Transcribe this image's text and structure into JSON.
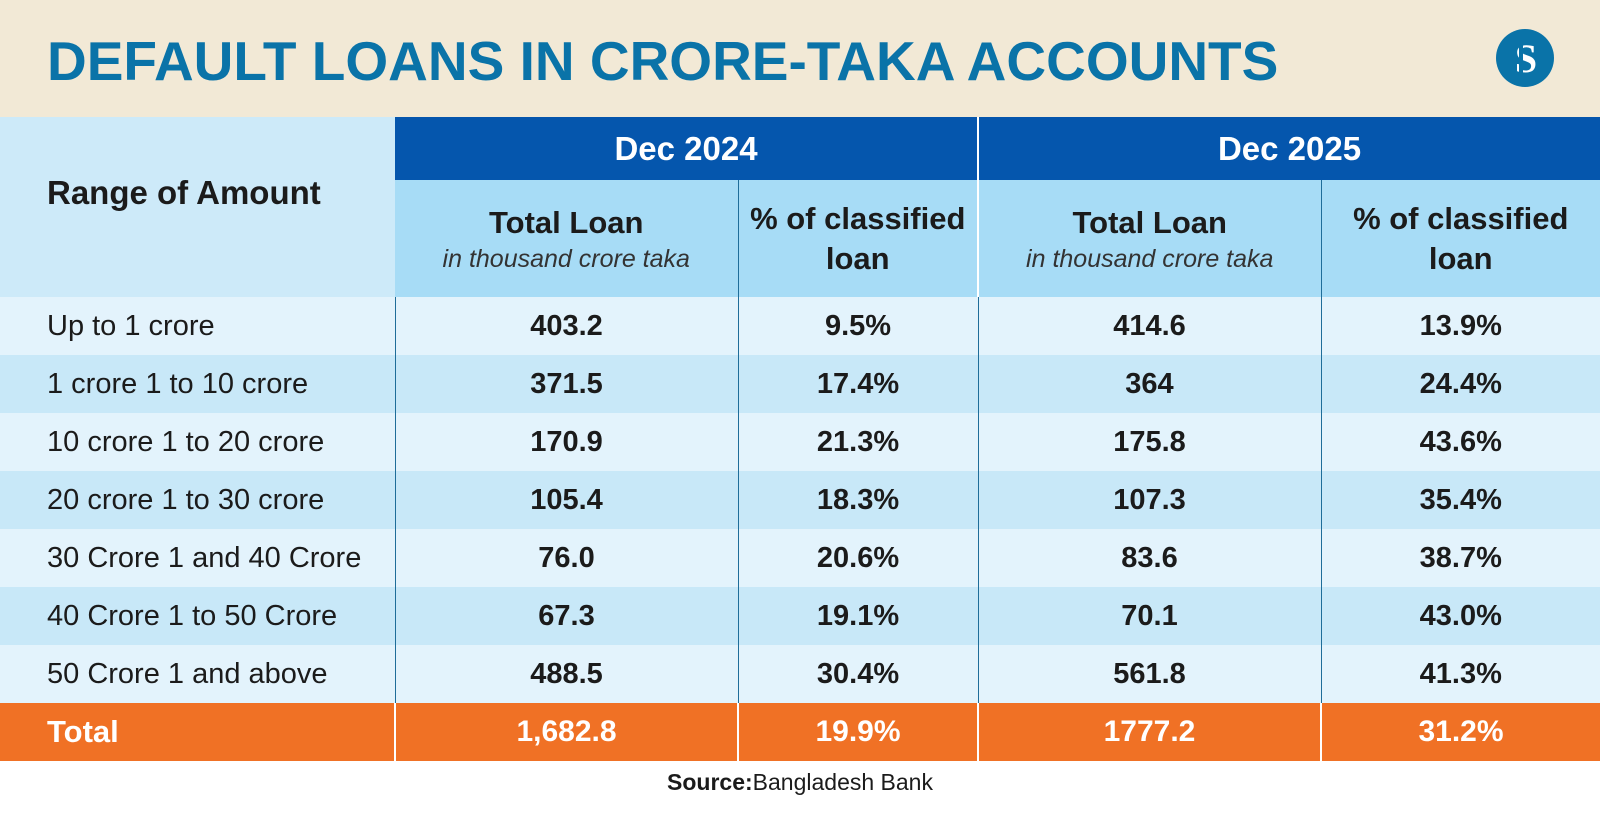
{
  "title": "DEFAULT LOANS IN CRORE-TAKA ACCOUNTS",
  "logo_text": "S",
  "table": {
    "corner_label": "Range of Amount",
    "periods": [
      "Dec 2024",
      "Dec 2025"
    ],
    "subheaders": {
      "total_loan": "Total Loan",
      "total_loan_note": "in thousand crore taka",
      "classified": "% of classified loan"
    },
    "rows": [
      {
        "range": "Up to 1 crore",
        "tl_2024": "403.2",
        "pc_2024": "9.5%",
        "tl_2025": "414.6",
        "pc_2025": "13.9%"
      },
      {
        "range": "1 crore 1 to 10 crore",
        "tl_2024": "371.5",
        "pc_2024": "17.4%",
        "tl_2025": "364",
        "pc_2025": "24.4%"
      },
      {
        "range": "10 crore 1 to 20 crore",
        "tl_2024": "170.9",
        "pc_2024": "21.3%",
        "tl_2025": "175.8",
        "pc_2025": "43.6%"
      },
      {
        "range": "20 crore 1 to 30 crore",
        "tl_2024": "105.4",
        "pc_2024": "18.3%",
        "tl_2025": "107.3",
        "pc_2025": "35.4%"
      },
      {
        "range": "30 Crore 1 and 40 Crore",
        "tl_2024": "76.0",
        "pc_2024": "20.6%",
        "tl_2025": "83.6",
        "pc_2025": "38.7%"
      },
      {
        "range": "40 Crore 1 to 50 Crore",
        "tl_2024": "67.3",
        "pc_2024": "19.1%",
        "tl_2025": "70.1",
        "pc_2025": "43.0%"
      },
      {
        "range": "50 Crore 1 and above",
        "tl_2024": "488.5",
        "pc_2024": "30.4%",
        "tl_2025": "561.8",
        "pc_2025": "41.3%"
      }
    ],
    "total": {
      "label": "Total",
      "tl_2024": "1,682.8",
      "pc_2024": "19.9%",
      "tl_2025": "1777.2",
      "pc_2025": "31.2%"
    }
  },
  "source": {
    "label": "Source:",
    "value": "Bangladesh Bank"
  },
  "colors": {
    "title": "#0a73a8",
    "header_band": "#f2e9d6",
    "period_header": "#0556ad",
    "subheader": "#a7dcf6",
    "row_light": "#e3f3fc",
    "row_dark": "#c8e8f8",
    "total_row": "#f07125"
  }
}
